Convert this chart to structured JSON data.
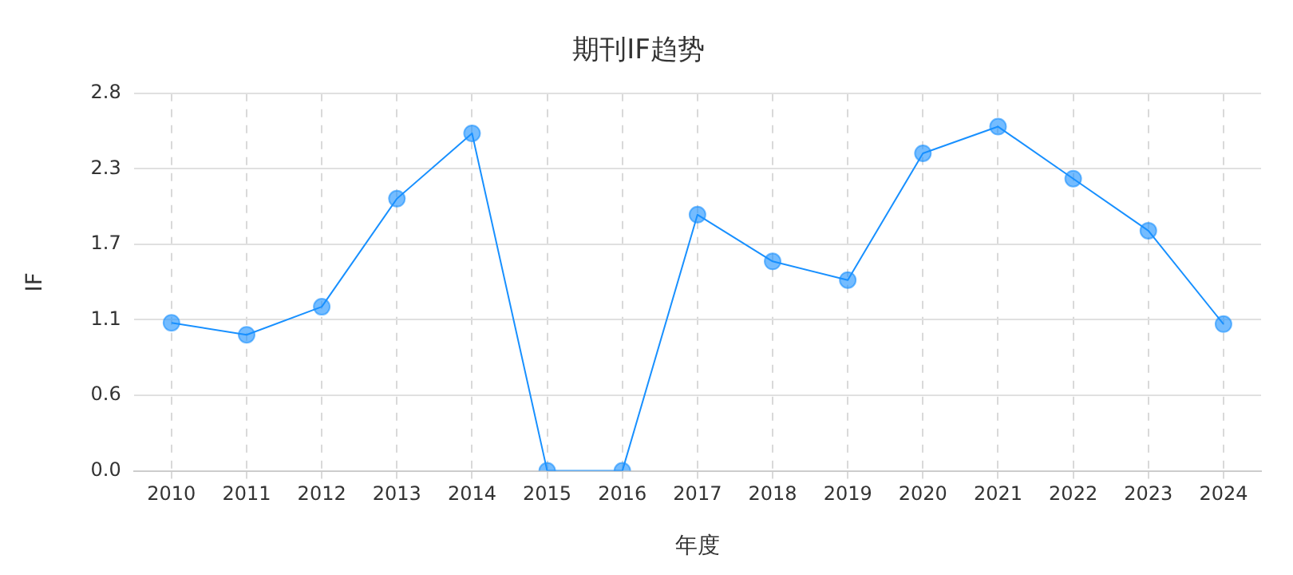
{
  "chart_data": {
    "type": "line",
    "title": "期刊IF趋势",
    "xlabel": "年度",
    "ylabel": "IF",
    "categories": [
      "2010",
      "2011",
      "2012",
      "2013",
      "2014",
      "2015",
      "2016",
      "2017",
      "2018",
      "2019",
      "2020",
      "2021",
      "2022",
      "2023",
      "2024"
    ],
    "series": [
      {
        "color": "#1890ff",
        "values": [
          1.11,
          1.02,
          1.23,
          2.04,
          2.53,
          0,
          0,
          1.92,
          1.57,
          1.43,
          2.38,
          2.58,
          2.19,
          1.8,
          1.1
        ]
      }
    ],
    "ylim": [
      0,
      2.83
    ],
    "yticks": [
      {
        "value": 0,
        "label": "0.0"
      },
      {
        "value": 0.566,
        "label": "0.6"
      },
      {
        "value": 1.132,
        "label": "1.1"
      },
      {
        "value": 1.698,
        "label": "1.7"
      },
      {
        "value": 2.264,
        "label": "2.3"
      },
      {
        "value": 2.83,
        "label": "2.8"
      }
    ],
    "grid": true,
    "legend": false,
    "marker": "circle",
    "line_style": "solid"
  }
}
